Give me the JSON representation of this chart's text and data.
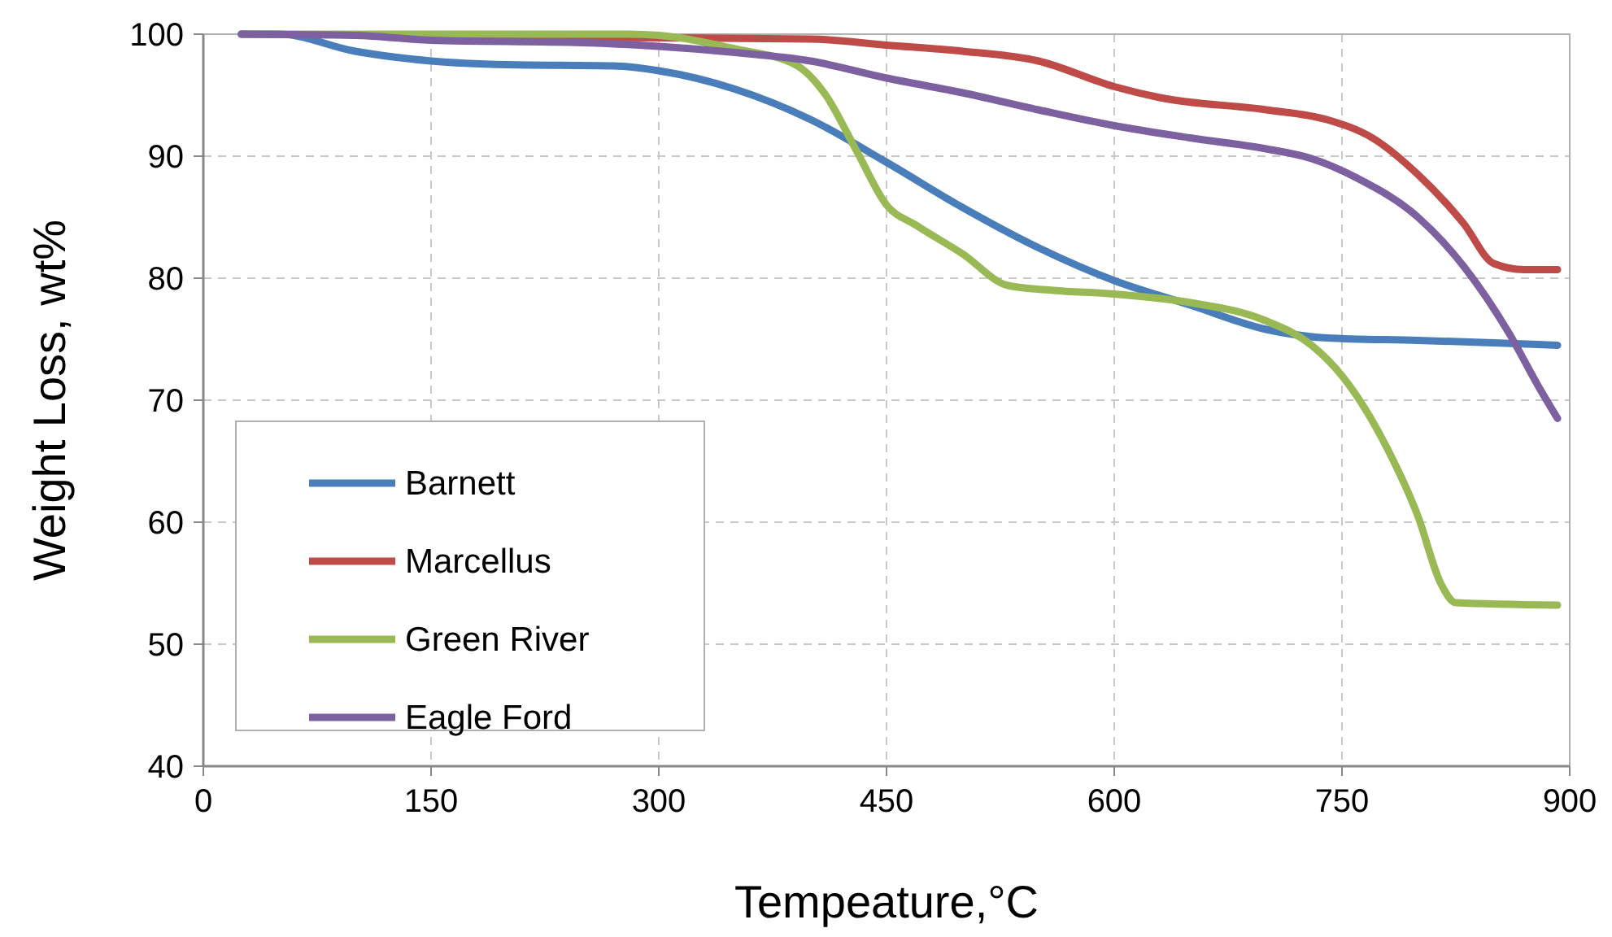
{
  "chart_data": {
    "type": "line",
    "xlabel": "Tempeature,°C",
    "ylabel": "Weight Loss, wt%",
    "xlim": [
      0,
      900
    ],
    "xticks": [
      0,
      150,
      300,
      450,
      600,
      750,
      900
    ],
    "ylim": [
      40,
      100
    ],
    "yticks": [
      40,
      50,
      60,
      70,
      80,
      90,
      100
    ],
    "grid": true,
    "legend": "bottom left",
    "marker": "none",
    "line_style": "solid",
    "series": [
      {
        "name": "Barnett",
        "color": "#4a7ebb",
        "x": [
          25,
          50,
          100,
          150,
          200,
          270,
          300,
          350,
          400,
          450,
          500,
          550,
          600,
          650,
          700,
          740,
          800,
          850,
          892
        ],
        "values": [
          100,
          100,
          98.6,
          97.8,
          97.5,
          97.4,
          97,
          95.5,
          93,
          89.5,
          85.8,
          82.5,
          79.8,
          77.8,
          75.8,
          75.1,
          74.9,
          74.7,
          74.5
        ]
      },
      {
        "name": "Marcellus",
        "color": "#be4b48",
        "x": [
          150,
          300,
          400,
          450,
          500,
          550,
          600,
          630,
          700,
          740,
          770,
          800,
          830,
          850,
          870,
          892
        ],
        "values": [
          99.8,
          99.7,
          99.6,
          99.1,
          98.6,
          97.8,
          95.7,
          94.8,
          93.8,
          93,
          91.5,
          88.5,
          84.5,
          81.2,
          80.7,
          80.7
        ]
      },
      {
        "name": "Green River",
        "color": "#98b954",
        "x": [
          25,
          280,
          300,
          350,
          390,
          410,
          430,
          450,
          470,
          500,
          530,
          560,
          600,
          650,
          700,
          730,
          750,
          780,
          800,
          815,
          825,
          892
        ],
        "values": [
          100,
          100,
          99.9,
          98.8,
          97.5,
          95,
          90.5,
          86,
          84.3,
          82,
          79.4,
          79,
          78.7,
          78,
          76.5,
          74.5,
          72,
          66,
          60.5,
          55,
          53.4,
          53.2
        ]
      },
      {
        "name": "Eagle Ford",
        "color": "#7d60a0",
        "x": [
          25,
          100,
          150,
          250,
          300,
          350,
          400,
          450,
          500,
          550,
          600,
          650,
          700,
          730,
          760,
          800,
          830,
          860,
          880,
          892
        ],
        "values": [
          100,
          99.9,
          99.5,
          99.3,
          99,
          98.5,
          97.8,
          96.4,
          95.2,
          93.8,
          92.5,
          91.5,
          90.6,
          89.8,
          88.2,
          85,
          81,
          75.5,
          71,
          68.5
        ]
      }
    ]
  }
}
